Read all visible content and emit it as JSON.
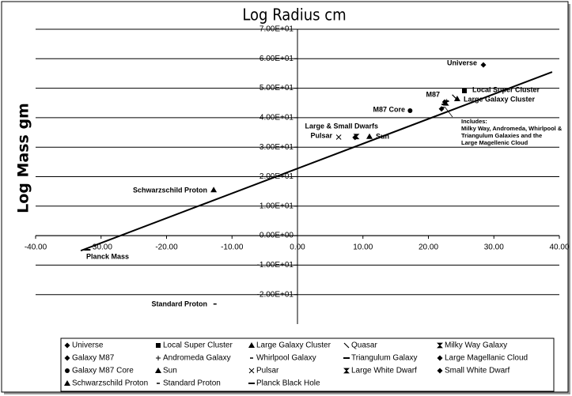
{
  "chart_data": {
    "type": "scatter",
    "title": "Log Radius cm",
    "y_label": "Log Mass gm",
    "xlim": [
      -40,
      40
    ],
    "xticks": [
      {
        "value": -40,
        "label": "-40.00"
      },
      {
        "value": -30,
        "label": "-30.00"
      },
      {
        "value": -20,
        "label": "-20.00"
      },
      {
        "value": -10,
        "label": "-10.00"
      },
      {
        "value": 0,
        "label": "0.00"
      },
      {
        "value": 10,
        "label": "10.00"
      },
      {
        "value": 20,
        "label": "20.00"
      },
      {
        "value": 30,
        "label": "30.00"
      },
      {
        "value": 40,
        "label": "40.00"
      }
    ],
    "ylim": [
      -30,
      70
    ],
    "yticks": [
      {
        "value": -20,
        "label": "-2.00E+01"
      },
      {
        "value": -10,
        "label": "-1.00E+01"
      },
      {
        "value": 0,
        "label": "0.00E+00"
      },
      {
        "value": 10,
        "label": "1.00E+01"
      },
      {
        "value": 20,
        "label": "2.00E+01"
      },
      {
        "value": 30,
        "label": "3.00E+01"
      },
      {
        "value": 40,
        "label": "4.00E+01"
      },
      {
        "value": 50,
        "label": "5.00E+01"
      },
      {
        "value": 60,
        "label": "6.00E+01"
      },
      {
        "value": 70,
        "label": "7.00E+01"
      }
    ],
    "grid": true,
    "legend": "bottom",
    "series": [
      {
        "name": "Universe",
        "marker": "diamond",
        "color": "#000000",
        "x": [
          28.4
        ],
        "y": [
          57.9
        ]
      },
      {
        "name": "Local Super Cluster",
        "marker": "square",
        "color": "#000000",
        "x": [
          25.5
        ],
        "y": [
          49.1
        ]
      },
      {
        "name": "Large Galaxy Cluster",
        "marker": "triangle",
        "color": "#000000",
        "x": [
          24.4
        ],
        "y": [
          46.4
        ]
      },
      {
        "name": "Quasar",
        "marker": "backslash",
        "color": "#000000",
        "x": [
          24.0
        ],
        "y": [
          47.0
        ]
      },
      {
        "name": "Milky Way Galaxy",
        "marker": "hourglass",
        "color": "#000000",
        "x": [
          22.7
        ],
        "y": [
          45.0
        ]
      },
      {
        "name": "Galaxy M87",
        "marker": "diamond",
        "color": "#000000",
        "x": [
          22.5
        ],
        "y": [
          45.3
        ]
      },
      {
        "name": "Andromeda Galaxy",
        "marker": "plus",
        "color": "#000000",
        "x": [
          22.8
        ],
        "y": [
          45.5
        ]
      },
      {
        "name": "Whirlpool Galaxy",
        "marker": "dash",
        "color": "#000000",
        "x": [
          22.2
        ],
        "y": [
          43.5
        ]
      },
      {
        "name": "Triangulum Galaxy",
        "marker": "longdash",
        "color": "#000000",
        "x": [
          22.5
        ],
        "y": [
          44.5
        ]
      },
      {
        "name": "Large Magellanic Cloud",
        "marker": "diamond",
        "color": "#000000",
        "x": [
          22.0
        ],
        "y": [
          43.0
        ]
      },
      {
        "name": "Galaxy M87 Core",
        "marker": "circle",
        "color": "#000000",
        "x": [
          17.2
        ],
        "y": [
          42.4
        ]
      },
      {
        "name": "Sun",
        "marker": "triangle",
        "color": "#000000",
        "x": [
          11.0
        ],
        "y": [
          33.6
        ]
      },
      {
        "name": "Pulsar",
        "marker": "cross",
        "color": "#000000",
        "x": [
          6.3
        ],
        "y": [
          33.4
        ]
      },
      {
        "name": "Large White Dwarf",
        "marker": "hourglass",
        "color": "#000000",
        "x": [
          9.0
        ],
        "y": [
          33.6
        ]
      },
      {
        "name": "Small White Dwarf",
        "marker": "diamond",
        "color": "#000000",
        "x": [
          8.8
        ],
        "y": [
          33.3
        ]
      },
      {
        "name": "Schwarzschild Proton",
        "marker": "triangle",
        "color": "#000000",
        "x": [
          -12.8
        ],
        "y": [
          15.5
        ]
      },
      {
        "name": "Standard Proton",
        "marker": "dash",
        "color": "#000000",
        "x": [
          -12.6
        ],
        "y": [
          -23.2
        ]
      },
      {
        "name": "Planck Black Hole",
        "marker": "longdash",
        "color": "#000000",
        "x": [
          -32.1
        ],
        "y": [
          -4.8
        ]
      }
    ],
    "trend_line": {
      "x": [
        -33.1,
        38.9
      ],
      "y": [
        -5.1,
        55.5
      ]
    },
    "annotations": [
      "Universe",
      "Local Super Cluster",
      "Large Galaxy Cluster",
      "M87",
      "M87 Core",
      "Large & Small Dwarfs",
      "Pulsar",
      "Sun",
      "Schwarzschild Proton",
      "Standard Proton",
      "Planck Mass",
      "Includes:",
      "Milky Way, Andromeda, Whirlpool &",
      "Triangulum Galaxies and the",
      "Large Magellenic Cloud"
    ]
  }
}
